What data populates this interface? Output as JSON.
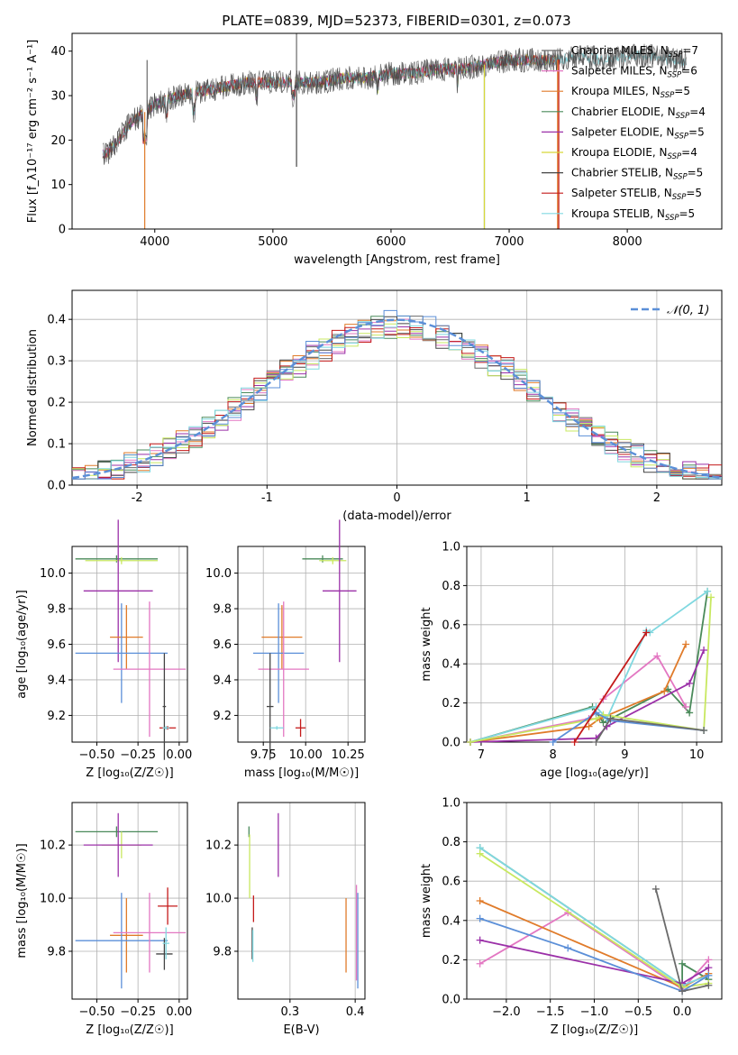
{
  "figure_title": "PLATE=0839, MJD=52373, FIBERID=0301, z=0.073",
  "series_colors": [
    "#6a6a6a",
    "#e377c2",
    "#e07b2a",
    "#4a8a5a",
    "#9b30a8",
    "#d8d838",
    "#444444",
    "#c41a1a",
    "#80d8e0"
  ],
  "series_accent": {
    "blue": "#5b8fd8",
    "green_light": "#c8e860",
    "purple": "#9b30a8"
  },
  "chart_data": [
    {
      "id": "spectrum",
      "type": "line",
      "xlabel": "wavelength [Angstrom, rest frame]",
      "ylabel": "Flux [f_λ10⁻¹⁷ erg cm⁻² s⁻¹ A⁻¹]",
      "xlim": [
        3300,
        8800
      ],
      "ylim": [
        0,
        44
      ],
      "xticks": [
        4000,
        5000,
        6000,
        7000,
        8000
      ],
      "yticks": [
        0,
        10,
        20,
        30,
        40
      ],
      "x": [
        3600,
        3800,
        4000,
        4200,
        4400,
        4600,
        4800,
        5000,
        5200,
        5400,
        5600,
        5800,
        6000,
        6200,
        6400,
        6600,
        6800,
        7000,
        7200,
        7400,
        7600,
        7800,
        8000,
        8200,
        8400
      ],
      "values": [
        17,
        24,
        28,
        30,
        31,
        32,
        33,
        33,
        33,
        33,
        34,
        34,
        35,
        35,
        36,
        36,
        37,
        38,
        38,
        38,
        39,
        38,
        39,
        39,
        38
      ],
      "legend_position": "upper-right",
      "series": [
        {
          "name": "Chabrier MILES, N_SSP=7"
        },
        {
          "name": "Salpeter MILES, N_SSP=6"
        },
        {
          "name": "Kroupa MILES, N_SSP=5"
        },
        {
          "name": "Chabrier ELODIE, N_SSP=4"
        },
        {
          "name": "Salpeter ELODIE, N_SSP=5"
        },
        {
          "name": "Kroupa ELODIE, N_SSP=4"
        },
        {
          "name": "Chabrier STELIB, N_SSP=5"
        },
        {
          "name": "Salpeter STELIB, N_SSP=5"
        },
        {
          "name": "Kroupa STELIB, N_SSP=5"
        }
      ]
    },
    {
      "id": "residuals",
      "type": "bar",
      "xlabel": "(data-model)/error",
      "ylabel": "Normed distribution",
      "xlim": [
        -2.5,
        2.5
      ],
      "ylim": [
        0,
        0.47
      ],
      "xticks": [
        -2,
        -1,
        0,
        1,
        2
      ],
      "yticks": [
        0.0,
        0.1,
        0.2,
        0.3,
        0.4
      ],
      "legend": "𝒩(0, 1)",
      "legend_position": "upper-right",
      "bin_width": 0.1
    },
    {
      "id": "age_vs_Z",
      "type": "scatter",
      "xlabel": "Z [log₁₀(Z/Z☉)]",
      "ylabel": "age  [log₁₀(age/yr)]",
      "xlim": [
        -0.65,
        0.05
      ],
      "ylim": [
        9.05,
        10.15
      ],
      "xticks": [
        -0.5,
        -0.25,
        0.0
      ],
      "xticklabels": [
        "−0.50",
        "−0.25",
        "0.00"
      ],
      "yticks": [
        9.2,
        9.4,
        9.6,
        9.8,
        10.0
      ],
      "points": [
        {
          "x": -0.38,
          "y": 10.08,
          "xerr": 0.25,
          "yerr": 0.02
        },
        {
          "x": -0.35,
          "y": 10.07,
          "xerr": 0.22,
          "yerr": 0.02
        },
        {
          "x": -0.37,
          "y": 9.9,
          "xerr": 0.21,
          "yerr": 0.4
        },
        {
          "x": -0.32,
          "y": 9.64,
          "xerr": 0.1,
          "yerr": 0.18
        },
        {
          "x": -0.35,
          "y": 9.55,
          "xerr": 0.28,
          "yerr": 0.28
        },
        {
          "x": -0.18,
          "y": 9.46,
          "xerr": 0.22,
          "yerr": 0.38
        },
        {
          "x": -0.09,
          "y": 9.25,
          "xerr": 0.01,
          "yerr": 0.3
        },
        {
          "x": -0.07,
          "y": 9.13,
          "xerr": 0.05,
          "yerr": 0.01
        },
        {
          "x": -0.08,
          "y": 9.13,
          "xerr": 0.02,
          "yerr": 0.01
        }
      ]
    },
    {
      "id": "age_vs_mass",
      "type": "scatter",
      "xlabel": "mass [log₁₀(M/M☉)]",
      "xlim": [
        9.6,
        10.35
      ],
      "ylim": [
        9.05,
        10.15
      ],
      "xticks": [
        9.75,
        10.0,
        10.25
      ],
      "xticklabels": [
        "9.75",
        "10.00",
        "10.25"
      ],
      "yticks": [
        9.2,
        9.4,
        9.6,
        9.8,
        10.0
      ],
      "points": [
        {
          "x": 10.1,
          "y": 10.08,
          "xerr": 0.12,
          "yerr": 0.02
        },
        {
          "x": 10.16,
          "y": 10.07,
          "xerr": 0.08,
          "yerr": 0.02
        },
        {
          "x": 10.2,
          "y": 9.9,
          "xerr": 0.1,
          "yerr": 0.4
        },
        {
          "x": 9.86,
          "y": 9.64,
          "xerr": 0.12,
          "yerr": 0.18
        },
        {
          "x": 9.84,
          "y": 9.55,
          "xerr": 0.15,
          "yerr": 0.28
        },
        {
          "x": 9.87,
          "y": 9.46,
          "xerr": 0.15,
          "yerr": 0.38
        },
        {
          "x": 9.79,
          "y": 9.25,
          "xerr": 0.02,
          "yerr": 0.3
        },
        {
          "x": 9.97,
          "y": 9.13,
          "xerr": 0.03,
          "yerr": 0.05
        },
        {
          "x": 9.83,
          "y": 9.13,
          "xerr": 0.04,
          "yerr": 0.01
        }
      ]
    },
    {
      "id": "weight_vs_age",
      "type": "line",
      "xlabel": "age  [log₁₀(age/yr)]",
      "ylabel": "mass weight",
      "xlim": [
        6.8,
        10.35
      ],
      "ylim": [
        0,
        1.0
      ],
      "xticks": [
        7,
        8,
        9,
        10
      ],
      "yticks": [
        0.0,
        0.2,
        0.4,
        0.6,
        0.8,
        1.0
      ],
      "series": [
        {
          "x": [
            6.85,
            8.55,
            8.7,
            9.6,
            9.9,
            10.15
          ],
          "values": [
            0.0,
            0.18,
            0.1,
            0.27,
            0.15,
            0.77
          ]
        },
        {
          "x": [
            6.85,
            8.5,
            8.7,
            9.45,
            9.85
          ],
          "values": [
            0.0,
            0.12,
            0.22,
            0.44,
            0.18
          ]
        },
        {
          "x": [
            6.85,
            8.5,
            8.65,
            9.55,
            9.85
          ],
          "values": [
            0.0,
            0.08,
            0.12,
            0.26,
            0.5
          ]
        },
        {
          "x": [
            6.85,
            8.6,
            8.75,
            9.3,
            9.35,
            10.15
          ],
          "values": [
            0.0,
            0.18,
            0.12,
            0.57,
            0.56,
            0.77
          ]
        },
        {
          "x": [
            6.85,
            8.6,
            8.75,
            9.9,
            10.1
          ],
          "values": [
            0.0,
            0.02,
            0.08,
            0.3,
            0.47
          ]
        },
        {
          "x": [
            6.85,
            8.6,
            8.7,
            10.1,
            10.2
          ],
          "values": [
            0.0,
            0.12,
            0.14,
            0.06,
            0.74
          ]
        },
        {
          "x": [
            8.0,
            8.6,
            8.8,
            10.1
          ],
          "values": [
            0.0,
            0.15,
            0.11,
            0.06
          ]
        },
        {
          "x": [
            8.6,
            8.8,
            10.1
          ],
          "values": [
            0.0,
            0.12,
            0.06
          ]
        },
        {
          "x": [
            8.3,
            9.3
          ],
          "values": [
            0.0,
            0.56
          ]
        }
      ]
    },
    {
      "id": "mass_vs_Z",
      "type": "scatter",
      "xlabel": "Z [log₁₀(Z/Z☉)]",
      "ylabel": "mass [log₁₀(M/M☉)]",
      "xlim": [
        -0.65,
        0.05
      ],
      "ylim": [
        9.62,
        10.36
      ],
      "xticks": [
        -0.5,
        -0.25,
        0.0
      ],
      "xticklabels": [
        "−0.50",
        "−0.25",
        "0.00"
      ],
      "yticks": [
        9.8,
        10.0,
        10.2
      ],
      "points": [
        {
          "x": -0.38,
          "y": 10.25,
          "xerr": 0.25,
          "yerr": 0.02
        },
        {
          "x": -0.35,
          "y": 10.2,
          "xerr": 0.12,
          "yerr": 0.05
        },
        {
          "x": -0.37,
          "y": 10.2,
          "xerr": 0.21,
          "yerr": 0.12
        },
        {
          "x": -0.32,
          "y": 9.86,
          "xerr": 0.1,
          "yerr": 0.14
        },
        {
          "x": -0.35,
          "y": 9.84,
          "xerr": 0.28,
          "yerr": 0.18
        },
        {
          "x": -0.18,
          "y": 9.87,
          "xerr": 0.22,
          "yerr": 0.15
        },
        {
          "x": -0.09,
          "y": 9.79,
          "xerr": 0.05,
          "yerr": 0.06
        },
        {
          "x": -0.07,
          "y": 9.97,
          "xerr": 0.06,
          "yerr": 0.07
        },
        {
          "x": -0.08,
          "y": 9.83,
          "xerr": 0.02,
          "yerr": 0.06
        }
      ]
    },
    {
      "id": "mass_vs_ebv",
      "type": "scatter",
      "xlabel": "E(B-V)",
      "xlim": [
        0.22,
        0.415
      ],
      "ylim": [
        9.62,
        10.36
      ],
      "xticks": [
        0.3,
        0.4
      ],
      "xticklabels": [
        "0.3",
        "0.4"
      ],
      "yticks": [
        9.8,
        10.0,
        10.2
      ],
      "points": [
        {
          "x": 0.237,
          "y": 10.25,
          "xerr": 0,
          "yerr": 0.02
        },
        {
          "x": 0.238,
          "y": 10.12,
          "xerr": 0,
          "yerr": 0.12
        },
        {
          "x": 0.282,
          "y": 10.2,
          "xerr": 0,
          "yerr": 0.12
        },
        {
          "x": 0.386,
          "y": 9.86,
          "xerr": 0,
          "yerr": 0.14
        },
        {
          "x": 0.404,
          "y": 9.84,
          "xerr": 0,
          "yerr": 0.18
        },
        {
          "x": 0.402,
          "y": 9.87,
          "xerr": 0,
          "yerr": 0.18
        },
        {
          "x": 0.242,
          "y": 9.83,
          "xerr": 0,
          "yerr": 0.06
        },
        {
          "x": 0.244,
          "y": 9.96,
          "xerr": 0,
          "yerr": 0.05
        },
        {
          "x": 0.243,
          "y": 9.82,
          "xerr": 0,
          "yerr": 0.06
        }
      ]
    },
    {
      "id": "weight_vs_Z",
      "type": "line",
      "xlabel": "Z [log₁₀(Z/Z☉)]",
      "ylabel": "mass weight",
      "xlim": [
        -2.45,
        0.45
      ],
      "ylim": [
        0,
        1.0
      ],
      "xticks": [
        -2.0,
        -1.5,
        -1.0,
        -0.5,
        0.0
      ],
      "xticklabels": [
        "−2.0",
        "−1.5",
        "−1.0",
        "−0.5",
        "0.0"
      ],
      "yticks": [
        0.0,
        0.2,
        0.4,
        0.6,
        0.8,
        1.0
      ],
      "series": [
        {
          "x": [
            -2.3,
            0.0,
            0.0,
            0.3
          ],
          "values": [
            0.77,
            0.07,
            0.18,
            0.1
          ]
        },
        {
          "x": [
            -2.3,
            -1.3,
            0.0,
            0.3
          ],
          "values": [
            0.18,
            0.44,
            0.05,
            0.2
          ]
        },
        {
          "x": [
            -2.3,
            0.0,
            0.3
          ],
          "values": [
            0.5,
            0.06,
            0.13
          ]
        },
        {
          "x": [
            -2.3,
            0.0,
            0.3
          ],
          "values": [
            0.77,
            0.07,
            0.12
          ]
        },
        {
          "x": [
            -2.3,
            0.0,
            0.3
          ],
          "values": [
            0.3,
            0.08,
            0.16
          ]
        },
        {
          "x": [
            -2.3,
            0.0,
            0.3
          ],
          "values": [
            0.74,
            0.06,
            0.08
          ]
        },
        {
          "x": [
            -2.3,
            -1.3,
            0.0,
            0.3
          ],
          "values": [
            0.41,
            0.26,
            0.04,
            0.12
          ]
        },
        {
          "x": [
            -0.3,
            0.0,
            0.3
          ],
          "values": [
            0.56,
            0.04,
            0.07
          ]
        }
      ]
    }
  ]
}
